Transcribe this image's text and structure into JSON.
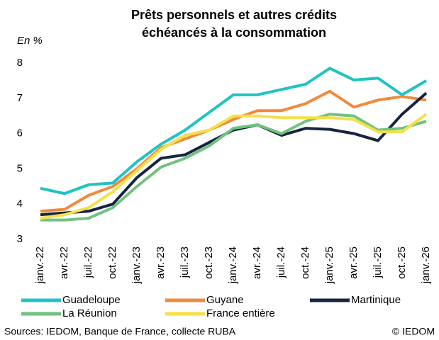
{
  "chart_data": {
    "type": "line",
    "title": [
      "Prêts personnels et autres crédits",
      "échéancés à la consommation"
    ],
    "y_label": "En %",
    "categories": [
      "janv.-22",
      "avr.-22",
      "juil.-22",
      "oct.-22",
      "janv.-23",
      "avr.-23",
      "juil.-23",
      "oct.-23",
      "janv.-24",
      "avr.-24",
      "juil.-24",
      "oct.-24",
      "janv.-25",
      "avr.-25",
      "juil.-25",
      "oct.-25",
      "janv.-26"
    ],
    "series": [
      {
        "name": "Guadeloupe",
        "color": "#1fc3c3",
        "values": [
          4.45,
          4.3,
          4.55,
          4.6,
          5.2,
          5.7,
          6.1,
          6.6,
          7.1,
          7.1,
          7.25,
          7.4,
          7.85,
          7.52,
          7.57,
          7.1,
          7.5
        ]
      },
      {
        "name": "Guyane",
        "color": "#f08a3a",
        "values": [
          3.8,
          3.85,
          4.25,
          4.5,
          5.0,
          5.6,
          5.85,
          6.1,
          6.4,
          6.65,
          6.65,
          6.85,
          7.2,
          6.75,
          6.95,
          7.05,
          6.95
        ]
      },
      {
        "name": "Martinique",
        "color": "#15243f",
        "values": [
          3.7,
          3.75,
          3.8,
          4.0,
          4.75,
          5.3,
          5.4,
          5.75,
          6.1,
          6.25,
          5.95,
          6.15,
          6.12,
          6.0,
          5.8,
          6.55,
          7.15
        ]
      },
      {
        "name": "La Réunion",
        "color": "#72c27f",
        "values": [
          3.55,
          3.55,
          3.6,
          3.9,
          4.5,
          5.05,
          5.3,
          5.65,
          6.15,
          6.25,
          6.0,
          6.35,
          6.55,
          6.5,
          6.1,
          6.15,
          6.35
        ]
      },
      {
        "name": "France entière",
        "color": "#f5e04a",
        "values": [
          3.6,
          3.7,
          3.9,
          4.35,
          4.95,
          5.55,
          5.95,
          6.1,
          6.5,
          6.5,
          6.45,
          6.45,
          6.45,
          6.4,
          6.05,
          6.05,
          6.55
        ]
      }
    ],
    "ylim": [
      3,
      8
    ],
    "yticks": [
      3,
      4,
      5,
      6,
      7,
      8
    ],
    "source": "Sources: IEDOM, Banque de France, collecte RUBA",
    "copyright": "© IEDOM"
  }
}
